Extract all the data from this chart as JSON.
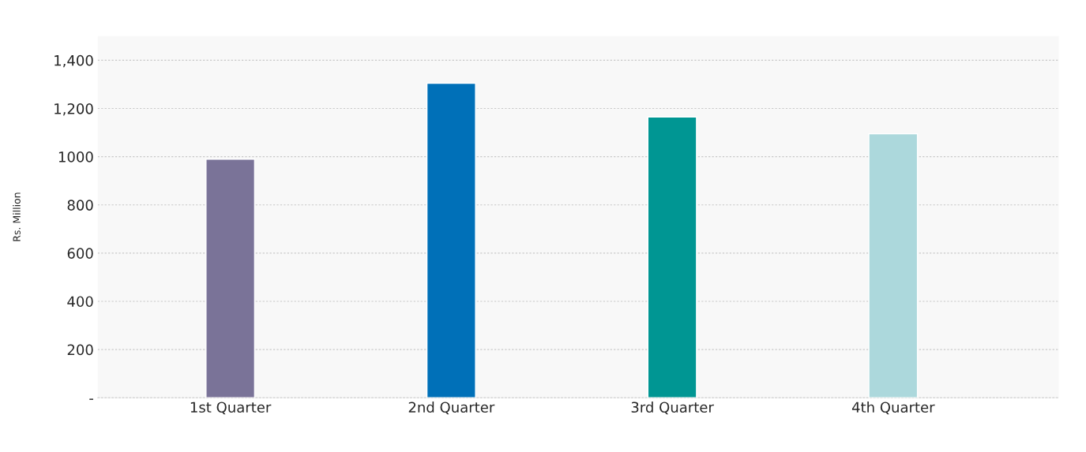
{
  "chart_data": {
    "type": "bar",
    "ylabel": "Rs. Million",
    "categories": [
      "1st Quarter",
      "2nd Quarter",
      "3rd Quarter",
      "4th Quarter"
    ],
    "values": [
      990,
      1305,
      1165,
      1095
    ],
    "colors": [
      "#7a7398",
      "#0070b8",
      "#009693",
      "#acd8dc"
    ],
    "ylim": [
      0,
      1500
    ],
    "yticks": [
      {
        "value": 0,
        "label": "-"
      },
      200,
      400,
      600,
      800,
      1000,
      {
        "value": 1200,
        "label": "1,200"
      },
      {
        "value": 1400,
        "label": "1,400"
      }
    ],
    "grid": "y",
    "legend": false
  }
}
